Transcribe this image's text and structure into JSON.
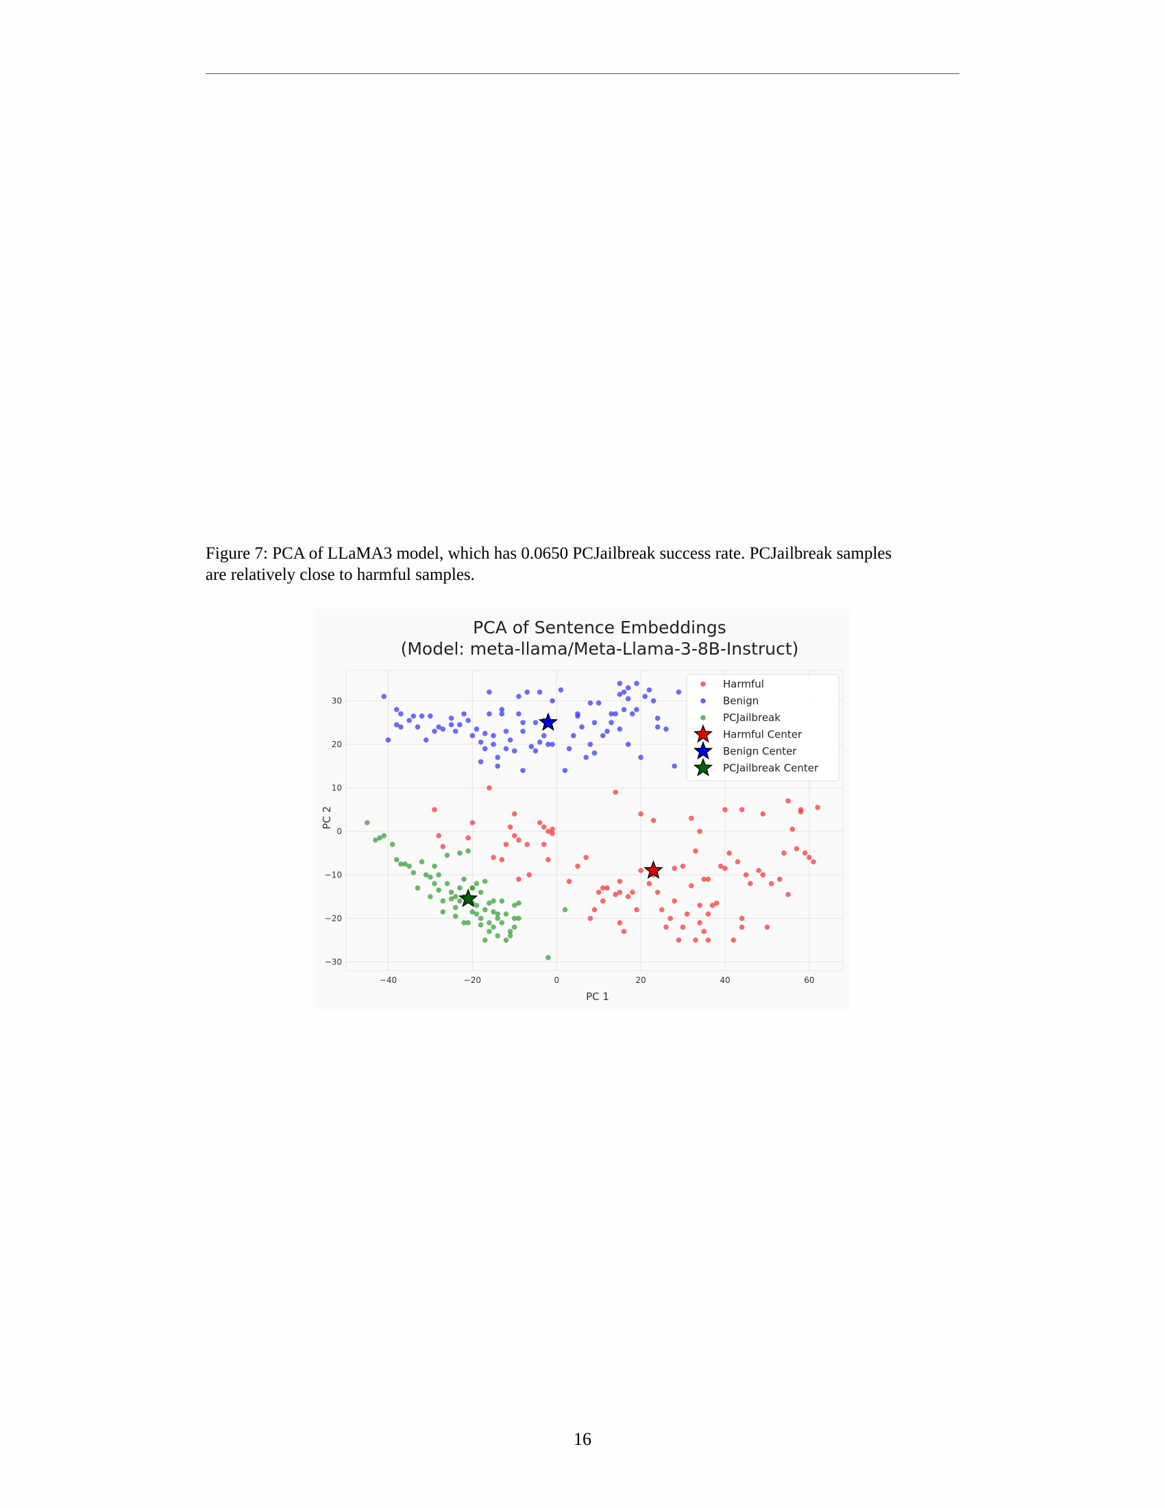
{
  "caption": {
    "line1": "Figure 7: PCA of LLaMA3 model, which has 0.0650 PCJailbreak success rate. PCJailbreak samples",
    "line2": "are relatively close to harmful samples."
  },
  "page_number": "16",
  "chart_data": {
    "type": "scatter",
    "title": "PCA of Sentence Embeddings",
    "subtitle": "(Model: meta-llama/Meta-Llama-3-8B-Instruct)",
    "xlabel": "PC 1",
    "ylabel": "PC 2",
    "xlim": [
      -50,
      68
    ],
    "ylim": [
      -32,
      37
    ],
    "xticks": [
      -40,
      -20,
      0,
      20,
      40,
      60
    ],
    "yticks": [
      -30,
      -20,
      -10,
      0,
      10,
      20,
      30
    ],
    "xtick_labels": [
      "−40",
      "−20",
      "0",
      "20",
      "40",
      "60"
    ],
    "ytick_labels": [
      "−30",
      "−20",
      "−10",
      "0",
      "10",
      "20",
      "30"
    ],
    "grid": true,
    "legend_position": "top-right",
    "colors": {
      "harmful": "#f03c3c",
      "benign": "#3c3cf0",
      "pcjailbreak": "#3c9f3c",
      "harmful_center": "#e00000",
      "benign_center": "#0000e0",
      "pcjailbreak_center": "#006400"
    },
    "legend": [
      {
        "label": "Harmful",
        "marker": "dot",
        "color_key": "harmful"
      },
      {
        "label": "Benign",
        "marker": "dot",
        "color_key": "benign"
      },
      {
        "label": "PCJailbreak",
        "marker": "dot",
        "color_key": "pcjailbreak"
      },
      {
        "label": "Harmful Center",
        "marker": "star",
        "color_key": "harmful_center"
      },
      {
        "label": "Benign Center",
        "marker": "star",
        "color_key": "benign_center"
      },
      {
        "label": "PCJailbreak Center",
        "marker": "star",
        "color_key": "pcjailbreak_center"
      }
    ],
    "series": [
      {
        "name": "Harmful",
        "color_key": "harmful",
        "points": [
          [
            -29,
            5
          ],
          [
            -28,
            -1
          ],
          [
            -27,
            -3.5
          ],
          [
            -21,
            -1.5
          ],
          [
            -20,
            2
          ],
          [
            -16,
            10
          ],
          [
            -15,
            -6
          ],
          [
            -13,
            -6.5
          ],
          [
            -11,
            1
          ],
          [
            -10,
            4
          ],
          [
            -10,
            -1
          ],
          [
            -12,
            -3
          ],
          [
            -9,
            -2
          ],
          [
            -7,
            -3
          ],
          [
            -6.5,
            -10
          ],
          [
            -9,
            -11
          ],
          [
            -4,
            2
          ],
          [
            -3,
            1
          ],
          [
            -3,
            -3
          ],
          [
            -1,
            -0.5
          ],
          [
            -2,
            -6.5
          ],
          [
            -2,
            0
          ],
          [
            -1,
            0.5
          ],
          [
            3,
            -11.5
          ],
          [
            5,
            -8
          ],
          [
            7,
            -6
          ],
          [
            8,
            -20
          ],
          [
            9,
            -18
          ],
          [
            10,
            -14
          ],
          [
            11,
            -13
          ],
          [
            12,
            -13
          ],
          [
            11,
            -16
          ],
          [
            14,
            -14.5
          ],
          [
            15,
            -14
          ],
          [
            15,
            -21
          ],
          [
            16,
            -23
          ],
          [
            17,
            -15
          ],
          [
            18,
            -14
          ],
          [
            14,
            9
          ],
          [
            15,
            -11.5
          ],
          [
            19,
            -18
          ],
          [
            20,
            -9
          ],
          [
            20,
            4
          ],
          [
            22,
            -12
          ],
          [
            23,
            2.5
          ],
          [
            23,
            -10
          ],
          [
            25,
            -18
          ],
          [
            26,
            -22
          ],
          [
            27,
            -20
          ],
          [
            28,
            -16
          ],
          [
            29,
            -25
          ],
          [
            30,
            -22
          ],
          [
            31,
            -19
          ],
          [
            32,
            -12.5
          ],
          [
            33,
            -25
          ],
          [
            34,
            -21
          ],
          [
            35,
            -23
          ],
          [
            34,
            -17
          ],
          [
            35,
            -11
          ],
          [
            36,
            -11
          ],
          [
            36,
            -25
          ],
          [
            36,
            -19
          ],
          [
            37,
            -17
          ],
          [
            38,
            -16.5
          ],
          [
            39,
            -8
          ],
          [
            40,
            -8.5
          ],
          [
            41,
            -5
          ],
          [
            42,
            -25
          ],
          [
            43,
            -7
          ],
          [
            44,
            -20
          ],
          [
            44,
            -22
          ],
          [
            45,
            -10
          ],
          [
            46,
            -12
          ],
          [
            48,
            -9
          ],
          [
            49,
            -10
          ],
          [
            50,
            -22
          ],
          [
            51,
            -12
          ],
          [
            53,
            -11
          ],
          [
            54,
            -5
          ],
          [
            55,
            -14.5
          ],
          [
            56,
            0.5
          ],
          [
            57,
            -4
          ],
          [
            58,
            4.5
          ],
          [
            58,
            5
          ],
          [
            59,
            -5
          ],
          [
            60,
            -6
          ],
          [
            61,
            -7
          ],
          [
            62,
            5.5
          ],
          [
            55,
            7
          ],
          [
            49,
            4
          ],
          [
            44,
            5
          ],
          [
            40,
            5
          ],
          [
            34,
            0
          ],
          [
            33,
            -4.5
          ],
          [
            24,
            -14
          ],
          [
            32,
            3
          ],
          [
            28,
            -8.5
          ],
          [
            30,
            -8
          ]
        ]
      },
      {
        "name": "Benign",
        "color_key": "benign",
        "points": [
          [
            -41,
            31
          ],
          [
            -40,
            21
          ],
          [
            -38,
            28
          ],
          [
            -37,
            27
          ],
          [
            -38,
            24.5
          ],
          [
            -37,
            24
          ],
          [
            -35,
            25.5
          ],
          [
            -34,
            26.5
          ],
          [
            -33,
            24
          ],
          [
            -32,
            26.5
          ],
          [
            -31,
            21
          ],
          [
            -30,
            26.5
          ],
          [
            -29,
            23
          ],
          [
            -28,
            24
          ],
          [
            -27,
            23.5
          ],
          [
            -25,
            26
          ],
          [
            -25,
            24.5
          ],
          [
            -24,
            23
          ],
          [
            -23,
            24.5
          ],
          [
            -22,
            27
          ],
          [
            -21,
            25.5
          ],
          [
            -20,
            22
          ],
          [
            -19,
            23.5
          ],
          [
            -18,
            20.5
          ],
          [
            -18,
            16
          ],
          [
            -17,
            22.5
          ],
          [
            -17,
            19
          ],
          [
            -16,
            32
          ],
          [
            -16,
            27
          ],
          [
            -15,
            22
          ],
          [
            -15,
            20
          ],
          [
            -14,
            17
          ],
          [
            -14,
            15
          ],
          [
            -13,
            28
          ],
          [
            -13,
            27
          ],
          [
            -12,
            23
          ],
          [
            -12,
            19
          ],
          [
            -11,
            21
          ],
          [
            -10,
            18.5
          ],
          [
            -9,
            31
          ],
          [
            -9,
            27
          ],
          [
            -8,
            25
          ],
          [
            -8,
            14
          ],
          [
            -8,
            23
          ],
          [
            -7,
            32
          ],
          [
            -6,
            19.5
          ],
          [
            -5,
            18.5
          ],
          [
            -5,
            25
          ],
          [
            -4,
            20.5
          ],
          [
            -4,
            32
          ],
          [
            -3,
            25.5
          ],
          [
            -3,
            22
          ],
          [
            -2,
            20
          ],
          [
            -1,
            30
          ],
          [
            -1,
            20
          ],
          [
            1,
            32.5
          ],
          [
            2,
            14
          ],
          [
            3,
            19
          ],
          [
            4,
            22
          ],
          [
            5,
            26.5
          ],
          [
            5,
            27
          ],
          [
            6,
            24
          ],
          [
            7,
            17
          ],
          [
            8,
            29.5
          ],
          [
            8,
            20
          ],
          [
            9,
            25
          ],
          [
            9,
            18
          ],
          [
            10,
            29.5
          ],
          [
            11,
            22
          ],
          [
            12,
            23
          ],
          [
            13,
            27
          ],
          [
            13,
            25
          ],
          [
            14,
            27
          ],
          [
            15,
            31.5
          ],
          [
            15,
            23.5
          ],
          [
            16,
            32
          ],
          [
            16,
            28
          ],
          [
            17,
            30.5
          ],
          [
            17,
            20
          ],
          [
            17,
            33
          ],
          [
            18,
            27
          ],
          [
            19,
            34
          ],
          [
            19,
            28
          ],
          [
            20,
            17
          ],
          [
            21,
            31
          ],
          [
            22,
            32.5
          ],
          [
            23,
            30
          ],
          [
            24,
            26
          ],
          [
            24,
            24
          ],
          [
            26,
            23.5
          ],
          [
            28,
            15
          ],
          [
            29,
            32
          ],
          [
            15,
            34
          ]
        ]
      },
      {
        "name": "PCJailbreak",
        "color_key": "pcjailbreak",
        "points": [
          [
            -45,
            2
          ],
          [
            -43,
            -2
          ],
          [
            -42,
            -1.5
          ],
          [
            -41,
            -1
          ],
          [
            -39,
            -3
          ],
          [
            -38,
            -6.5
          ],
          [
            -37,
            -7.5
          ],
          [
            -36,
            -7.5
          ],
          [
            -35,
            -8
          ],
          [
            -34,
            -9.5
          ],
          [
            -33,
            -13
          ],
          [
            -32,
            -7
          ],
          [
            -31,
            -10
          ],
          [
            -30,
            -10.5
          ],
          [
            -30,
            -15
          ],
          [
            -29,
            -12
          ],
          [
            -29,
            -8
          ],
          [
            -28,
            -13.5
          ],
          [
            -28,
            -10
          ],
          [
            -27,
            -16
          ],
          [
            -27,
            -18.5
          ],
          [
            -26,
            -5.5
          ],
          [
            -26,
            -12
          ],
          [
            -25,
            -14
          ],
          [
            -25,
            -15.5
          ],
          [
            -24,
            -17.5
          ],
          [
            -24,
            -19.5
          ],
          [
            -23,
            -16
          ],
          [
            -23,
            -13
          ],
          [
            -23,
            -5
          ],
          [
            -22,
            -15
          ],
          [
            -22,
            -11
          ],
          [
            -22,
            -21
          ],
          [
            -21,
            -21
          ],
          [
            -21,
            -15
          ],
          [
            -21,
            -4.5
          ],
          [
            -20,
            -18.5
          ],
          [
            -20,
            -16.5
          ],
          [
            -20,
            -13
          ],
          [
            -19,
            -19
          ],
          [
            -19,
            -12
          ],
          [
            -19,
            -17
          ],
          [
            -18,
            -14
          ],
          [
            -18,
            -20
          ],
          [
            -18,
            -21.5
          ],
          [
            -17,
            -18
          ],
          [
            -17,
            -25
          ],
          [
            -16,
            -21
          ],
          [
            -16,
            -16.5
          ],
          [
            -16,
            -23
          ],
          [
            -15,
            -22
          ],
          [
            -15,
            -18.5
          ],
          [
            -15,
            -16
          ],
          [
            -14,
            -20
          ],
          [
            -14,
            -19
          ],
          [
            -14,
            -24
          ],
          [
            -13,
            -16
          ],
          [
            -13,
            -21
          ],
          [
            -12,
            -19
          ],
          [
            -12,
            -25
          ],
          [
            -11,
            -23
          ],
          [
            -11,
            -24
          ],
          [
            -10,
            -17
          ],
          [
            -10,
            -20
          ],
          [
            -10,
            -22
          ],
          [
            -9,
            -16.5
          ],
          [
            -9,
            -20
          ],
          [
            -2,
            -29
          ],
          [
            2,
            -18
          ],
          [
            -20,
            -13
          ],
          [
            -17,
            -11.5
          ],
          [
            -24,
            -15
          ]
        ]
      }
    ],
    "centers": [
      {
        "name": "Harmful Center",
        "x": 23,
        "y": -9,
        "color_key": "harmful_center"
      },
      {
        "name": "Benign Center",
        "x": -2,
        "y": 25,
        "color_key": "benign_center"
      },
      {
        "name": "PCJailbreak Center",
        "x": -21,
        "y": -15.5,
        "color_key": "pcjailbreak_center"
      }
    ]
  }
}
